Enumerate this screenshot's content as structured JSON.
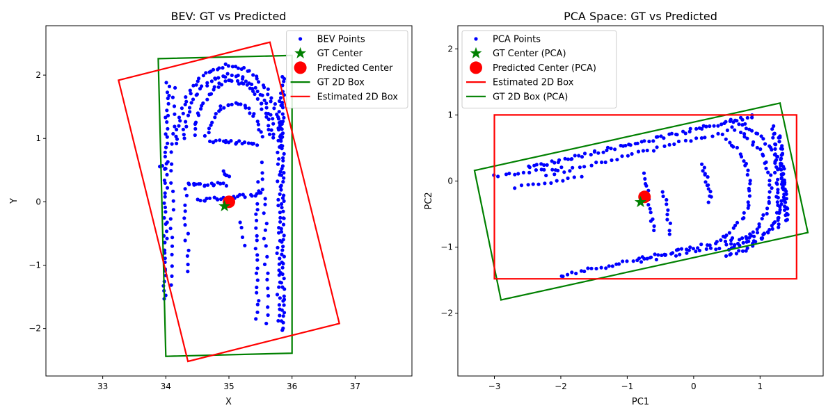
{
  "chart_data": [
    {
      "type": "scatter",
      "title": "BEV: GT vs Predicted",
      "xlabel": "X",
      "ylabel": "Y",
      "xlim": [
        32.1,
        37.9
      ],
      "ylim": [
        -2.75,
        2.78
      ],
      "xticks": [
        33,
        34,
        35,
        36,
        37
      ],
      "yticks": [
        -2,
        -1,
        0,
        1,
        2
      ],
      "legend_position": "upper right",
      "legend": [
        {
          "label": "BEV Points",
          "kind": "point",
          "color": "#0000ff"
        },
        {
          "label": "GT Center",
          "kind": "star",
          "color": "#008000"
        },
        {
          "label": "Predicted Center",
          "kind": "circle",
          "color": "#ff0000"
        },
        {
          "label": "GT 2D Box",
          "kind": "line",
          "color": "#008000"
        },
        {
          "label": "Estimated 2D Box",
          "kind": "line",
          "color": "#ff0000"
        }
      ],
      "gt_center": [
        34.93,
        -0.07
      ],
      "predicted_center": [
        35.0,
        0.0
      ],
      "gt_box": [
        [
          33.88,
          2.26
        ],
        [
          36.0,
          2.31
        ],
        [
          36.0,
          -2.39
        ],
        [
          34.0,
          -2.44
        ]
      ],
      "estimated_box": [
        [
          33.25,
          1.92
        ],
        [
          35.65,
          2.52
        ],
        [
          36.75,
          -1.92
        ],
        [
          34.35,
          -2.52
        ]
      ],
      "points_color": "#0000ff",
      "point_groups": [
        {
          "shape": "arc",
          "cx": 35.0,
          "cy": 0.9,
          "rx": 0.82,
          "ry": 1.25,
          "from_deg": 0,
          "to_deg": 180,
          "n": 55
        },
        {
          "shape": "arc",
          "cx": 35.0,
          "cy": 0.9,
          "rx": 0.72,
          "ry": 1.1,
          "from_deg": 5,
          "to_deg": 175,
          "n": 45
        },
        {
          "shape": "arc",
          "cx": 35.05,
          "cy": 0.9,
          "rx": 0.6,
          "ry": 1.0,
          "from_deg": 10,
          "to_deg": 170,
          "n": 40
        },
        {
          "shape": "arc",
          "cx": 35.08,
          "cy": 0.85,
          "rx": 0.45,
          "ry": 0.7,
          "from_deg": 15,
          "to_deg": 165,
          "n": 28
        },
        {
          "shape": "line",
          "from": [
            34.03,
            1.9
          ],
          "to": [
            33.98,
            -1.55
          ],
          "n": 48
        },
        {
          "shape": "line",
          "from": [
            34.12,
            1.8
          ],
          "to": [
            34.08,
            -1.3
          ],
          "n": 22
        },
        {
          "shape": "line",
          "from": [
            35.85,
            2.0
          ],
          "to": [
            35.85,
            -2.05
          ],
          "n": 70
        },
        {
          "shape": "line",
          "from": [
            35.8,
            1.7
          ],
          "to": [
            35.78,
            -1.9
          ],
          "n": 40
        },
        {
          "shape": "line",
          "from": [
            35.45,
            0.3
          ],
          "to": [
            35.45,
            -1.85
          ],
          "n": 22
        },
        {
          "shape": "line",
          "from": [
            35.55,
            0.6
          ],
          "to": [
            35.62,
            -1.9
          ],
          "n": 20
        },
        {
          "shape": "line",
          "from": [
            34.7,
            0.97
          ],
          "to": [
            35.45,
            0.92
          ],
          "n": 20
        },
        {
          "shape": "line",
          "from": [
            34.35,
            0.27
          ],
          "to": [
            34.95,
            0.28
          ],
          "n": 18
        },
        {
          "shape": "line",
          "from": [
            34.5,
            0.02
          ],
          "to": [
            35.5,
            0.12
          ],
          "n": 24
        },
        {
          "shape": "line",
          "from": [
            34.9,
            0.47
          ],
          "to": [
            34.98,
            0.42
          ],
          "n": 6
        },
        {
          "shape": "line",
          "from": [
            33.9,
            0.55
          ],
          "to": [
            34.0,
            0.53
          ],
          "n": 4
        },
        {
          "shape": "line",
          "from": [
            34.3,
            0.2
          ],
          "to": [
            34.35,
            -1.1
          ],
          "n": 12
        },
        {
          "shape": "line",
          "from": [
            35.2,
            -0.3
          ],
          "to": [
            35.25,
            -0.7
          ],
          "n": 4
        }
      ]
    },
    {
      "type": "scatter",
      "title": "PCA Space: GT vs Predicted",
      "xlabel": "PC1",
      "ylabel": "PC2",
      "xlim": [
        -3.55,
        1.95
      ],
      "ylim": [
        -2.95,
        2.35
      ],
      "xticks": [
        -3,
        -2,
        -1,
        0,
        1
      ],
      "yticks": [
        -2,
        -1,
        0,
        1,
        2
      ],
      "legend_position": "upper left",
      "legend": [
        {
          "label": "PCA Points",
          "kind": "point",
          "color": "#0000ff"
        },
        {
          "label": "GT Center (PCA)",
          "kind": "star",
          "color": "#008000"
        },
        {
          "label": "Predicted Center (PCA)",
          "kind": "circle",
          "color": "#ff0000"
        },
        {
          "label": "Estimated 2D Box",
          "kind": "line",
          "color": "#ff0000"
        },
        {
          "label": "GT 2D Box (PCA)",
          "kind": "line",
          "color": "#008000"
        }
      ],
      "gt_center": [
        -0.8,
        -0.32
      ],
      "predicted_center": [
        -0.74,
        -0.24
      ],
      "gt_box": [
        [
          -3.3,
          0.16
        ],
        [
          1.3,
          1.18
        ],
        [
          1.72,
          -0.78
        ],
        [
          -2.9,
          -1.8
        ]
      ],
      "estimated_box": [
        [
          -3.0,
          1.0
        ],
        [
          1.55,
          1.0
        ],
        [
          1.55,
          -1.48
        ],
        [
          -3.0,
          -1.48
        ]
      ],
      "points_color": "#0000ff",
      "point_groups": [
        {
          "shape": "arc",
          "cx": 0.3,
          "cy": -0.1,
          "rx": 1.05,
          "ry": 1.05,
          "from_deg": -80,
          "to_deg": 75,
          "n": 55
        },
        {
          "shape": "arc",
          "cx": 0.3,
          "cy": -0.1,
          "rx": 0.85,
          "ry": 0.95,
          "from_deg": -75,
          "to_deg": 70,
          "n": 40
        },
        {
          "shape": "arc",
          "cx": 0.2,
          "cy": -0.1,
          "rx": 0.65,
          "ry": 0.8,
          "from_deg": -70,
          "to_deg": 65,
          "n": 30
        },
        {
          "shape": "line",
          "from": [
            -2.5,
            0.2
          ],
          "to": [
            0.9,
            0.98
          ],
          "n": 70
        },
        {
          "shape": "line",
          "from": [
            -2.2,
            0.1
          ],
          "to": [
            0.5,
            0.75
          ],
          "n": 35
        },
        {
          "shape": "line",
          "from": [
            -3.0,
            0.07
          ],
          "to": [
            -2.0,
            0.2
          ],
          "n": 14
        },
        {
          "shape": "line",
          "from": [
            -2.7,
            -0.1
          ],
          "to": [
            -1.7,
            0.05
          ],
          "n": 12
        },
        {
          "shape": "line",
          "from": [
            -2.0,
            -1.43
          ],
          "to": [
            1.2,
            -0.75
          ],
          "n": 55
        },
        {
          "shape": "line",
          "from": [
            -0.8,
            -1.2
          ],
          "to": [
            1.0,
            -0.9
          ],
          "n": 25
        },
        {
          "shape": "line",
          "from": [
            1.3,
            0.7
          ],
          "to": [
            1.4,
            -0.6
          ],
          "n": 45
        },
        {
          "shape": "line",
          "from": [
            1.2,
            0.85
          ],
          "to": [
            1.3,
            -0.7
          ],
          "n": 30
        },
        {
          "shape": "line",
          "from": [
            0.15,
            0.25
          ],
          "to": [
            0.25,
            -0.3
          ],
          "n": 14
        },
        {
          "shape": "line",
          "from": [
            -0.75,
            0.1
          ],
          "to": [
            -0.6,
            -0.75
          ],
          "n": 14
        },
        {
          "shape": "line",
          "from": [
            -0.45,
            -0.15
          ],
          "to": [
            -0.35,
            -0.8
          ],
          "n": 10
        }
      ]
    }
  ]
}
